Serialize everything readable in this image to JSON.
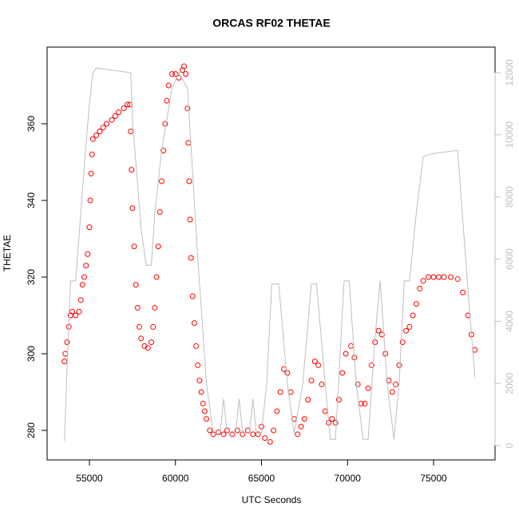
{
  "chart_data": {
    "type": "scatter",
    "title": "ORCAS RF02 THETAE",
    "x_label": "UTC Seconds",
    "y_label": "THETAE",
    "xlim": [
      52541,
      78573
    ],
    "xticks": [
      55000,
      60000,
      65000,
      70000,
      75000
    ],
    "ylim": [
      272.3,
      380
    ],
    "yticks": [
      280,
      300,
      320,
      340,
      360
    ],
    "y2lim": [
      -463,
      12823
    ],
    "y2ticks": [
      0,
      2000,
      4000,
      6000,
      8000,
      10000,
      12000
    ],
    "y2_color": "#bebebe",
    "series": [
      {
        "type": "scatter",
        "color": "#ff0000",
        "x": [
          53550,
          53600,
          53700,
          53800,
          53900,
          54000,
          54200,
          54400,
          54500,
          54600,
          54700,
          54800,
          54900,
          55000,
          55050,
          55100,
          55150,
          55200,
          55400,
          55600,
          55800,
          56000,
          56300,
          56500,
          56700,
          57000,
          57200,
          57350,
          57400,
          57450,
          57500,
          57600,
          57700,
          57800,
          57900,
          58000,
          58200,
          58400,
          58600,
          58700,
          58800,
          58900,
          59000,
          59100,
          59200,
          59300,
          59400,
          59500,
          59600,
          59800,
          60000,
          60200,
          60400,
          60500,
          60600,
          60700,
          60750,
          60800,
          60850,
          60900,
          61000,
          61100,
          61200,
          61300,
          61400,
          61500,
          61600,
          61700,
          61800,
          62000,
          62200,
          62500,
          62800,
          63000,
          63300,
          63600,
          63900,
          64200,
          64500,
          64800,
          65000,
          65200,
          65500,
          65700,
          65900,
          66100,
          66300,
          66500,
          66700,
          66900,
          67100,
          67300,
          67500,
          67700,
          67900,
          68100,
          68300,
          68500,
          68700,
          68900,
          69100,
          69300,
          69500,
          69700,
          69900,
          70200,
          70400,
          70600,
          70800,
          71000,
          71200,
          71400,
          71600,
          71800,
          72000,
          72200,
          72400,
          72600,
          72800,
          73000,
          73200,
          73400,
          73600,
          73800,
          74000,
          74200,
          74400,
          74700,
          75000,
          75300,
          75600,
          76000,
          76400,
          76700,
          77000,
          77200,
          77400
        ],
        "values": [
          298,
          300,
          303,
          307,
          310,
          311,
          310,
          311,
          314,
          318,
          320,
          323,
          326,
          333,
          340,
          347,
          352,
          356,
          357,
          358,
          359,
          360,
          361,
          362,
          363,
          364,
          365,
          365,
          358,
          348,
          338,
          328,
          318,
          312,
          307,
          304,
          302,
          301.5,
          303,
          307,
          312,
          320,
          328,
          337,
          345,
          353,
          360,
          366,
          370,
          373,
          373,
          372,
          374,
          375,
          373,
          364,
          355,
          345,
          335,
          325,
          315,
          308,
          302,
          297,
          293,
          290,
          287,
          285,
          283,
          280,
          279,
          279.5,
          279,
          280,
          279,
          280,
          279,
          280,
          279,
          279,
          281,
          278,
          277,
          280,
          285,
          290,
          296,
          295,
          290,
          283,
          279,
          281,
          283,
          288,
          293,
          298,
          297,
          292,
          285,
          282,
          283,
          282,
          288,
          295,
          300,
          302,
          299,
          292,
          287,
          287,
          291,
          297,
          303,
          306,
          305,
          300,
          293,
          290,
          292,
          297,
          303,
          306,
          307,
          310,
          313,
          317,
          319,
          320,
          320,
          320,
          320,
          320,
          319.5,
          316,
          310,
          305,
          301
        ]
      },
      {
        "type": "line",
        "axis": "y2",
        "color": "#bebebe",
        "x": [
          53550,
          53700,
          53900,
          54200,
          54500,
          54700,
          55000,
          55200,
          55400,
          57400,
          57500,
          58000,
          58300,
          58600,
          58800,
          59200,
          59800,
          60200,
          60700,
          61300,
          61800,
          62200,
          62600,
          62800,
          63000,
          63500,
          63700,
          63900,
          64300,
          64500,
          64700,
          65000,
          65300,
          65600,
          66000,
          66500,
          66900,
          67400,
          67900,
          68200,
          68700,
          69000,
          69300,
          69800,
          70100,
          70500,
          70900,
          71200,
          71600,
          71900,
          72300,
          72700,
          73000,
          73300,
          73600,
          74000,
          74400,
          75000,
          76400,
          77000,
          77400
        ],
        "values": [
          150,
          2500,
          5300,
          5300,
          7500,
          9000,
          11000,
          12000,
          12150,
          12000,
          10500,
          7000,
          5800,
          5800,
          7500,
          9500,
          11500,
          12000,
          11500,
          6000,
          2000,
          400,
          400,
          1500,
          400,
          400,
          1500,
          400,
          400,
          1500,
          400,
          400,
          2000,
          5200,
          5200,
          2000,
          400,
          2000,
          5200,
          5200,
          2000,
          200,
          200,
          5300,
          5300,
          2000,
          200,
          200,
          3500,
          5300,
          2000,
          200,
          2000,
          5300,
          5300,
          7500,
          9300,
          9400,
          9500,
          5000,
          2200
        ]
      }
    ]
  }
}
